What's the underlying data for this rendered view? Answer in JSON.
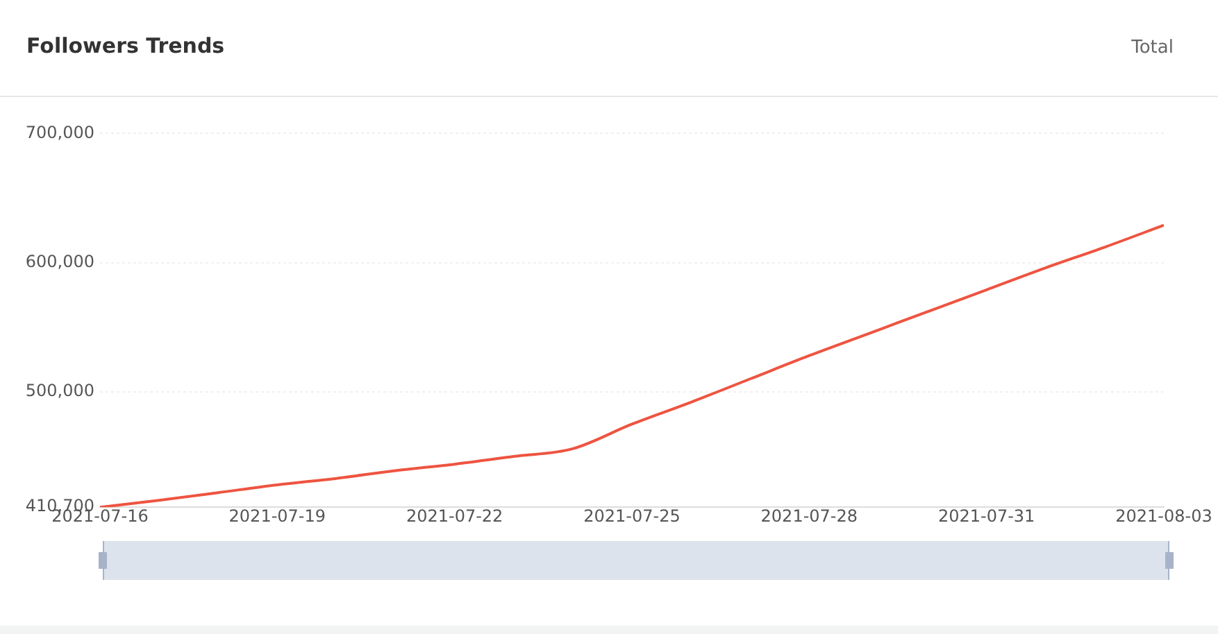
{
  "chart_data": {
    "type": "line",
    "title": "Followers Trends",
    "annotations": [
      "Total"
    ],
    "x": [
      "2021-07-16",
      "2021-07-17",
      "2021-07-18",
      "2021-07-19",
      "2021-07-20",
      "2021-07-21",
      "2021-07-22",
      "2021-07-23",
      "2021-07-24",
      "2021-07-25",
      "2021-07-26",
      "2021-07-27",
      "2021-07-28",
      "2021-07-29",
      "2021-07-30",
      "2021-07-31",
      "2021-08-01",
      "2021-08-02",
      "2021-08-03"
    ],
    "series": [
      {
        "color": "#ee5440",
        "values": [
          410700,
          416000,
          422000,
          428000,
          433000,
          439000,
          444000,
          450000,
          456000,
          475000,
          492000,
          510000,
          528000,
          545000,
          562000,
          579000,
          596000,
          612000,
          629000
        ]
      }
    ],
    "xlim": [
      "2021-07-16",
      "2021-08-03"
    ],
    "xticks": [
      "2021-07-16",
      "2021-07-19",
      "2021-07-22",
      "2021-07-25",
      "2021-07-28",
      "2021-07-31",
      "2021-08-03"
    ],
    "ylim": [
      410700,
      700000
    ],
    "yticks": [
      {
        "value": 410700,
        "label": "410,700"
      },
      {
        "value": 500000,
        "label": "500,000"
      },
      {
        "value": 600000,
        "label": "600,000"
      },
      {
        "value": 700000,
        "label": "700,000"
      }
    ],
    "grid": "y",
    "legend": false,
    "marker": "none",
    "line_style": "solid"
  }
}
